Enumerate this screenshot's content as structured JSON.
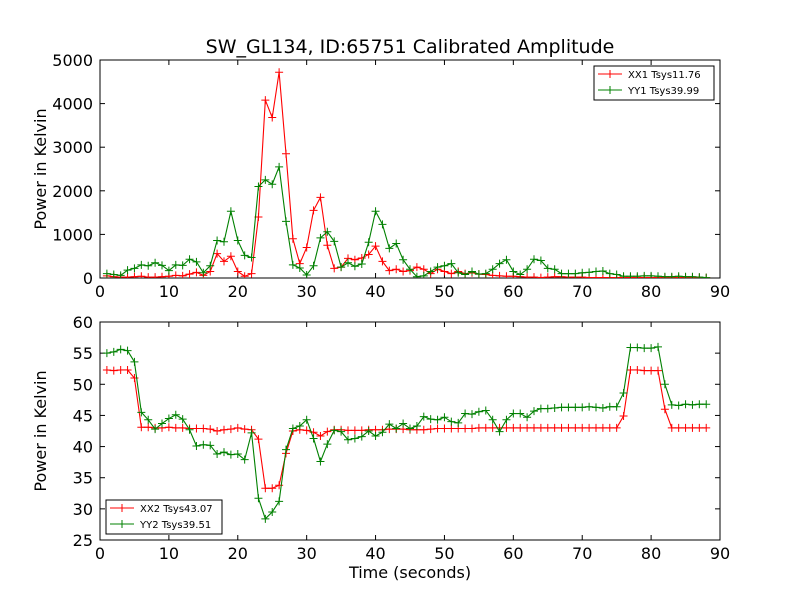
{
  "title": "SW_GL134, ID:65751 Calibrated Amplitude",
  "chart_data": [
    {
      "type": "line",
      "ylabel": "Power in Kelvin",
      "xlabel": "",
      "xlim": [
        0,
        90
      ],
      "ylim": [
        0,
        5000
      ],
      "xticks": [
        "0",
        "10",
        "20",
        "30",
        "40",
        "50",
        "60",
        "70",
        "80",
        "90"
      ],
      "yticks": [
        "0",
        "1000",
        "2000",
        "3000",
        "4000",
        "5000"
      ],
      "legend_position": "top-right",
      "series": [
        {
          "name": "XX1 Tsys11.76",
          "color": "#ff0000",
          "x": [
            1,
            2,
            3,
            4,
            5,
            6,
            7,
            8,
            9,
            10,
            11,
            12,
            13,
            14,
            15,
            16,
            17,
            18,
            19,
            20,
            21,
            22,
            23,
            24,
            25,
            26,
            27,
            28,
            29,
            30,
            31,
            32,
            33,
            34,
            35,
            36,
            37,
            38,
            39,
            40,
            41,
            42,
            43,
            44,
            45,
            46,
            47,
            48,
            49,
            50,
            51,
            52,
            53,
            54,
            55,
            56,
            57,
            58,
            59,
            60,
            61,
            62,
            63,
            64,
            65,
            66,
            67,
            68,
            69,
            70,
            71,
            72,
            73,
            74,
            75,
            76,
            77,
            78,
            79,
            80,
            81,
            82,
            83,
            84,
            85,
            86,
            87,
            88
          ],
          "y": [
            50,
            30,
            20,
            20,
            30,
            40,
            20,
            20,
            30,
            40,
            60,
            50,
            90,
            130,
            60,
            150,
            560,
            380,
            500,
            150,
            40,
            100,
            1400,
            4080,
            3680,
            4720,
            2850,
            900,
            330,
            700,
            1550,
            1850,
            750,
            220,
            250,
            450,
            420,
            460,
            540,
            730,
            380,
            170,
            200,
            150,
            170,
            250,
            200,
            100,
            200,
            150,
            100,
            150,
            100,
            120,
            90,
            80,
            60,
            50,
            40,
            40,
            30,
            20,
            20,
            10,
            20,
            30,
            30,
            20,
            20,
            20,
            10,
            10,
            10,
            10,
            10,
            10,
            10,
            10,
            10,
            10,
            10,
            10,
            10,
            10,
            10,
            10,
            10,
            10
          ]
        },
        {
          "name": "YY1 Tsys39.99",
          "color": "#008000",
          "x": [
            1,
            2,
            3,
            4,
            5,
            6,
            7,
            8,
            9,
            10,
            11,
            12,
            13,
            14,
            15,
            16,
            17,
            18,
            19,
            20,
            21,
            22,
            23,
            24,
            25,
            26,
            27,
            28,
            29,
            30,
            31,
            32,
            33,
            34,
            35,
            36,
            37,
            38,
            39,
            40,
            41,
            42,
            43,
            44,
            45,
            46,
            47,
            48,
            49,
            50,
            51,
            52,
            53,
            54,
            55,
            56,
            57,
            58,
            59,
            60,
            61,
            62,
            63,
            64,
            65,
            66,
            67,
            68,
            69,
            70,
            71,
            72,
            73,
            74,
            75,
            76,
            77,
            78,
            79,
            80,
            81,
            82,
            83,
            84,
            85,
            86,
            87,
            88
          ],
          "y": [
            100,
            80,
            60,
            180,
            220,
            300,
            280,
            350,
            290,
            170,
            300,
            290,
            430,
            370,
            120,
            280,
            860,
            830,
            1530,
            860,
            520,
            470,
            2100,
            2250,
            2150,
            2550,
            1300,
            300,
            230,
            70,
            280,
            920,
            1060,
            840,
            250,
            350,
            270,
            320,
            820,
            1530,
            1230,
            680,
            790,
            420,
            200,
            30,
            50,
            150,
            250,
            280,
            330,
            120,
            80,
            150,
            90,
            100,
            200,
            330,
            420,
            150,
            80,
            200,
            430,
            400,
            220,
            200,
            100,
            100,
            100,
            120,
            130,
            150,
            160,
            100,
            80,
            40,
            40,
            40,
            50,
            50,
            40,
            30,
            30,
            40,
            30,
            30,
            20,
            10
          ]
        }
      ]
    },
    {
      "type": "line",
      "ylabel": "Power in Kelvin",
      "xlabel": "Time (seconds)",
      "xlim": [
        0,
        90
      ],
      "ylim": [
        25,
        60
      ],
      "xticks": [
        "0",
        "10",
        "20",
        "30",
        "40",
        "50",
        "60",
        "70",
        "80",
        "90"
      ],
      "yticks": [
        "25",
        "30",
        "35",
        "40",
        "45",
        "50",
        "55",
        "60"
      ],
      "legend_position": "bottom-left",
      "series": [
        {
          "name": "XX2 Tsys43.07",
          "color": "#ff0000",
          "x": [
            1,
            2,
            3,
            4,
            5,
            6,
            7,
            8,
            9,
            10,
            11,
            12,
            13,
            14,
            15,
            16,
            17,
            18,
            19,
            20,
            21,
            22,
            23,
            24,
            25,
            26,
            27,
            28,
            29,
            30,
            31,
            32,
            33,
            34,
            35,
            36,
            37,
            38,
            39,
            40,
            41,
            42,
            43,
            44,
            45,
            46,
            47,
            48,
            49,
            50,
            51,
            52,
            53,
            54,
            55,
            56,
            57,
            58,
            59,
            60,
            61,
            62,
            63,
            64,
            65,
            66,
            67,
            68,
            69,
            70,
            71,
            72,
            73,
            74,
            75,
            76,
            77,
            78,
            79,
            80,
            81,
            82,
            83,
            84,
            85,
            86,
            87,
            88
          ],
          "y": [
            52.3,
            52.2,
            52.3,
            52.3,
            51,
            43.1,
            43.1,
            43.0,
            43.0,
            43.1,
            43.0,
            43.0,
            42.9,
            42.9,
            42.9,
            42.8,
            42.5,
            42.7,
            42.8,
            43.0,
            42.8,
            42.7,
            41.2,
            33.3,
            33.3,
            33.8,
            38.9,
            42.5,
            42.7,
            42.6,
            42.3,
            41.7,
            42.4,
            42.7,
            42.7,
            42.6,
            42.6,
            42.6,
            42.7,
            42.7,
            42.7,
            42.8,
            42.8,
            42.8,
            42.7,
            42.7,
            42.7,
            42.8,
            42.9,
            42.9,
            42.9,
            42.9,
            42.9,
            42.9,
            43.0,
            43.0,
            43.0,
            43.0,
            43.0,
            43.0,
            43.0,
            43.0,
            43.0,
            43.0,
            43.0,
            43.0,
            43.0,
            43.0,
            43.0,
            43.0,
            43.0,
            43.0,
            43.0,
            43.0,
            43.0,
            44.9,
            52.3,
            52.3,
            52.2,
            52.2,
            52.2,
            46.0,
            43.0,
            43.0,
            43.0,
            43.0,
            43.0,
            43.0
          ]
        },
        {
          "name": "YY2 Tsys39.51",
          "color": "#008000",
          "x": [
            1,
            2,
            3,
            4,
            5,
            6,
            7,
            8,
            9,
            10,
            11,
            12,
            13,
            14,
            15,
            16,
            17,
            18,
            19,
            20,
            21,
            22,
            23,
            24,
            25,
            26,
            27,
            28,
            29,
            30,
            31,
            32,
            33,
            34,
            35,
            36,
            37,
            38,
            39,
            40,
            41,
            42,
            43,
            44,
            45,
            46,
            47,
            48,
            49,
            50,
            51,
            52,
            53,
            54,
            55,
            56,
            57,
            58,
            59,
            60,
            61,
            62,
            63,
            64,
            65,
            66,
            67,
            68,
            69,
            70,
            71,
            72,
            73,
            74,
            75,
            76,
            77,
            78,
            79,
            80,
            81,
            82,
            83,
            84,
            85,
            86,
            87,
            88
          ],
          "y": [
            55,
            55.2,
            55.6,
            55.4,
            53.6,
            45.5,
            44.3,
            42.8,
            43.7,
            44.5,
            45.1,
            44.4,
            42.7,
            40.1,
            40.3,
            40.2,
            38.8,
            39.1,
            38.7,
            38.8,
            37.9,
            42.2,
            31.7,
            28.4,
            29.5,
            31.2,
            39.5,
            42.9,
            43.3,
            44.3,
            41.3,
            37.6,
            40.4,
            42.6,
            42.4,
            41.1,
            41.3,
            41.6,
            42.5,
            41.7,
            42.3,
            43.6,
            42.9,
            43.7,
            42.9,
            43.3,
            44.8,
            44.4,
            44.3,
            44.7,
            44.0,
            43.8,
            45.3,
            45.2,
            45.6,
            45.8,
            44.3,
            42.4,
            44.3,
            45.3,
            45.3,
            44.7,
            45.7,
            46.1,
            46.1,
            46.2,
            46.3,
            46.3,
            46.3,
            46.3,
            46.4,
            46.3,
            46.2,
            46.4,
            46.4,
            48.6,
            55.9,
            55.9,
            55.8,
            55.8,
            56.0,
            50.0,
            46.7,
            46.6,
            46.8,
            46.7,
            46.8,
            46.8
          ]
        }
      ]
    }
  ]
}
